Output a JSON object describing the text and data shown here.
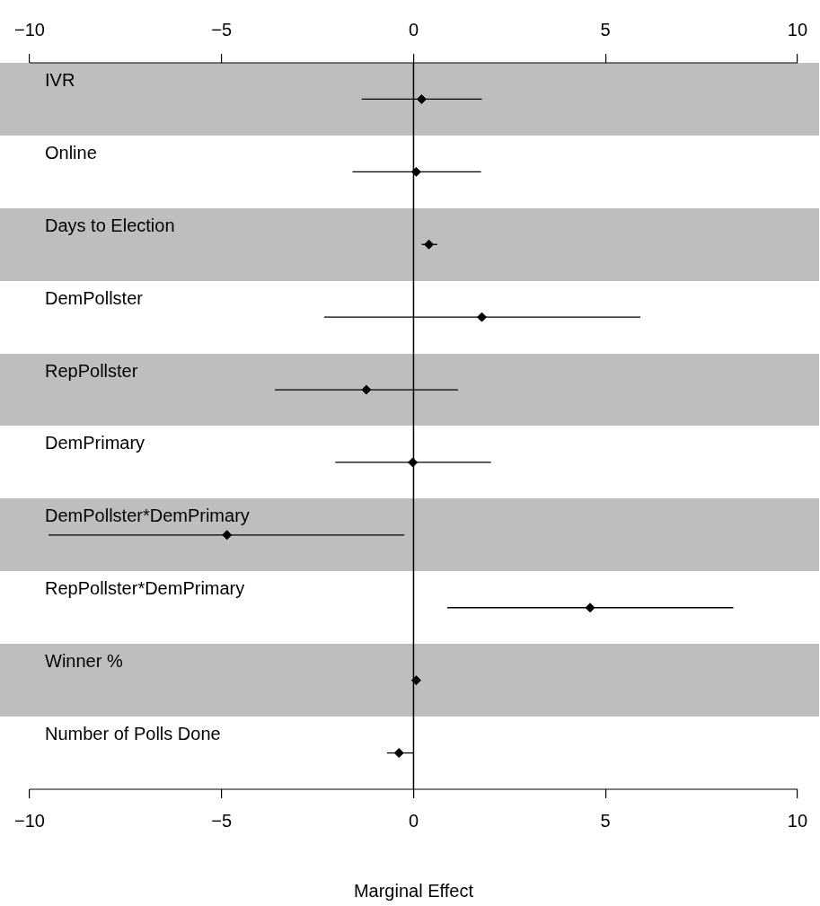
{
  "chart_data": {
    "type": "scatter",
    "xlabel": "Marginal Effect",
    "color": "#000000",
    "marker": "diamond",
    "grid": false,
    "legend": false,
    "tick_labels": "x",
    "orientation": "horizontal",
    "categories": [
      "IVR",
      "Online",
      "Days to Election",
      "DemPollster",
      "RepPollster",
      "DemPrimary",
      "DemPollster*DemPrimary",
      "RepPollster*DemPrimary",
      "Winner %",
      "Number of Polls Done"
    ],
    "values": [
      0.21,
      0.07,
      0.4,
      1.78,
      -1.23,
      -0.02,
      -4.86,
      4.6,
      0.07,
      -0.38
    ],
    "errors": [
      [
        -1.35,
        1.78
      ],
      [
        -1.59,
        1.76
      ],
      [
        0.21,
        0.62
      ],
      [
        -2.33,
        5.91
      ],
      [
        -3.61,
        1.16
      ],
      [
        -2.04,
        2.02
      ],
      [
        -9.51,
        -0.24
      ],
      [
        0.88,
        8.33
      ],
      null,
      [
        -0.69,
        0
      ]
    ],
    "xlim": [
      -10,
      10
    ],
    "xticks": [
      {
        "value": -10,
        "label": "−10"
      },
      {
        "value": -5,
        "label": "−5"
      },
      0,
      5,
      10
    ],
    "x2lim": [
      -10,
      10
    ],
    "x2ticks": [
      {
        "value": -10,
        "label": "−10"
      },
      {
        "value": -5,
        "label": "−5"
      },
      0,
      5,
      10
    ],
    "ref_lines": [
      {
        "axis": "x",
        "value": 0,
        "color": "#000000"
      }
    ]
  }
}
